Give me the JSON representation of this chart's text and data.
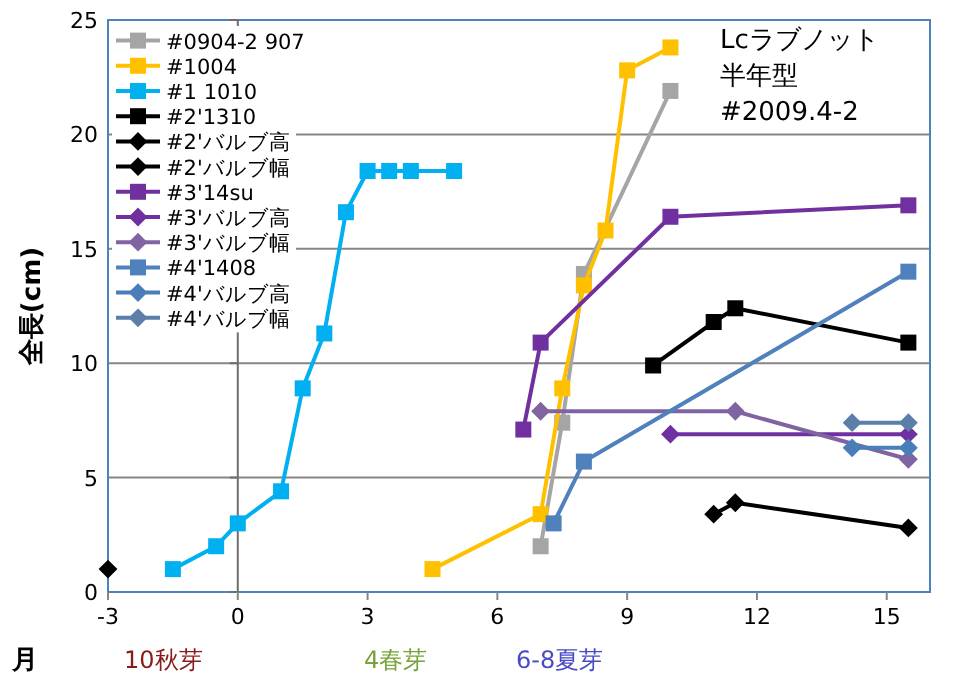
{
  "chart_data": {
    "type": "line",
    "xlabel": "月",
    "ylabel": "全長(cm)",
    "annotations": [
      "Lcラブノット",
      "半年型",
      "#2009.4-2",
      "10秋芽",
      "4春芽",
      "6-8夏芽"
    ],
    "xlim": [
      -3,
      16
    ],
    "xticks": [
      -3,
      0,
      3,
      6,
      9,
      12,
      15
    ],
    "ylim": [
      0,
      25
    ],
    "yticks": [
      0,
      5,
      10,
      15,
      20,
      25
    ],
    "grid": "y",
    "legend": "top left",
    "series": [
      {
        "name": "#0904-2 907",
        "color": "#a5a5a5",
        "marker": "square",
        "x": [
          7,
          7.5,
          8,
          10
        ],
        "values": [
          2,
          7.4,
          13.9,
          21.9
        ]
      },
      {
        "name": "#1004",
        "color": "#ffc000",
        "marker": "square",
        "x": [
          4.5,
          7,
          7.5,
          8,
          8.5,
          9,
          10
        ],
        "values": [
          1,
          3.4,
          8.9,
          13.4,
          15.8,
          22.8,
          23.8
        ]
      },
      {
        "name": "#1 1010",
        "color": "#00b0f0",
        "marker": "square",
        "x": [
          -1.5,
          -0.5,
          0,
          1,
          1.5,
          2,
          2.5,
          3,
          3.5,
          4,
          5
        ],
        "values": [
          1,
          2,
          3,
          4.4,
          8.9,
          11.3,
          16.6,
          18.4,
          18.4,
          18.4,
          18.4
        ]
      },
      {
        "name": "#2'1310",
        "color": "#000000",
        "marker": "square",
        "x": [
          9.6,
          11,
          11.5,
          15.5
        ],
        "values": [
          9.9,
          11.8,
          12.4,
          10.9
        ]
      },
      {
        "name": "#2'バルブ高",
        "color": "#000000",
        "marker": "diamond",
        "x": [
          11,
          11.5,
          15.5
        ],
        "values": [
          3.4,
          3.9,
          2.8
        ]
      },
      {
        "name": "#2'バルブ幅",
        "color": "#000000",
        "marker": "diamond",
        "x": [
          -3
        ],
        "values": [
          1
        ]
      },
      {
        "name": "#3'14su",
        "color": "#7030a0",
        "marker": "square",
        "x": [
          6.6,
          7,
          10,
          15.5
        ],
        "values": [
          7.1,
          10.9,
          16.4,
          16.9
        ]
      },
      {
        "name": "#3'バルブ高",
        "color": "#7030a0",
        "marker": "diamond",
        "x": [
          10,
          15.5
        ],
        "values": [
          6.9,
          6.9
        ]
      },
      {
        "name": "#3'バルブ幅",
        "color": "#8064a2",
        "marker": "diamond",
        "x": [
          7,
          11.5,
          15.5
        ],
        "values": [
          7.9,
          7.9,
          5.8
        ]
      },
      {
        "name": "#4'1408",
        "color": "#4f81bd",
        "marker": "square",
        "x": [
          7.3,
          8,
          15.5
        ],
        "values": [
          3,
          5.7,
          14
        ]
      },
      {
        "name": "#4'バルブ高",
        "color": "#4a7ebb",
        "marker": "diamond",
        "x": [
          14.2,
          15.5
        ],
        "values": [
          6.3,
          6.3
        ]
      },
      {
        "name": "#4'バルブ幅",
        "color": "#5b7fa8",
        "marker": "diamond",
        "x": [
          14.2,
          15.5
        ],
        "values": [
          7.4,
          7.4
        ]
      }
    ]
  }
}
